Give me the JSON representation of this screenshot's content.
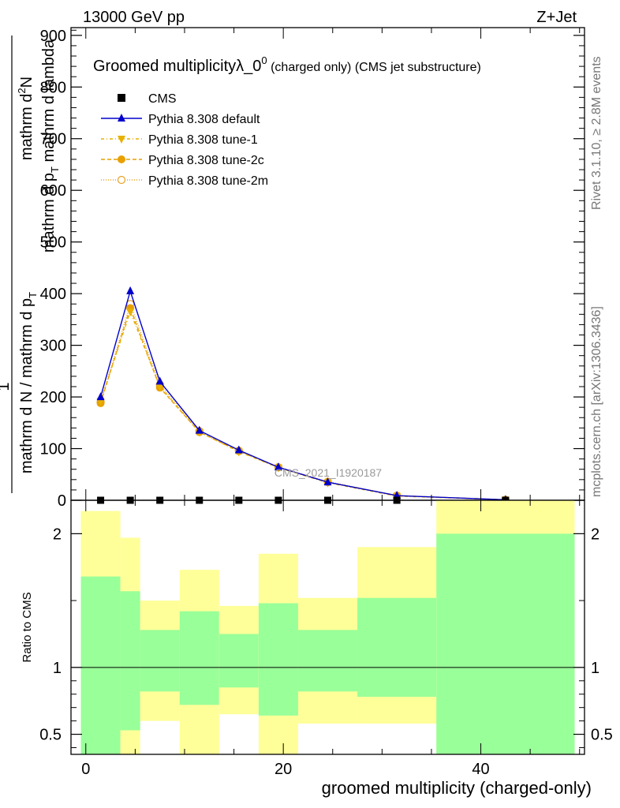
{
  "header": {
    "left": "13000 GeV pp",
    "right": "Z+Jet"
  },
  "side_labels": {
    "rivet": "Rivet 3.1.10, ≥ 2.8M events",
    "mcplots": "mcplots.cern.ch [arXiv:1306.3436]"
  },
  "watermark": "CMS_2021_I1920187",
  "chart_data": [
    {
      "type": "line",
      "title_main": "Groomed multiplicityλ_0",
      "title_sup": "0",
      "title_tail": " (charged only) (CMS jet substructure)",
      "ylabel_parts": {
        "one": "1",
        "denominator": "mathrm d N / mathrm d p",
        "denominator_sub": "T",
        "numerator_a": "mathrm d",
        "numerator_sup": "2",
        "numerator_b": "N",
        "lower_a": "mathrm d p",
        "lower_sub": "T",
        "lower_b": " mathrm d lambda"
      },
      "xlim": [
        -1.5,
        50.5
      ],
      "ylim": [
        0,
        915
      ],
      "yticks": [
        0,
        100,
        200,
        300,
        400,
        500,
        600,
        700,
        800,
        900
      ],
      "x": [
        1.5,
        4.5,
        7.5,
        11.5,
        15.5,
        19.5,
        24.5,
        31.5,
        42.5
      ],
      "cms": {
        "name": "CMS",
        "values": [
          0,
          0,
          0,
          0,
          0,
          0,
          0,
          0,
          0
        ],
        "color": "#000000"
      },
      "series": [
        {
          "name": "Pythia 8.308 default",
          "values": [
            200,
            405,
            230,
            135,
            97,
            64,
            35,
            9,
            1
          ],
          "color": "#0000cc",
          "marker": "triangle-up",
          "dash": ""
        },
        {
          "name": "Pythia 8.308 tune-1",
          "values": [
            192,
            365,
            220,
            132,
            94,
            63,
            34,
            8,
            1
          ],
          "color": "#e8b000",
          "marker": "triangle-down",
          "dash": "4,3,1,3"
        },
        {
          "name": "Pythia 8.308 tune-2c",
          "values": [
            188,
            372,
            218,
            132,
            95,
            64,
            35,
            9,
            1
          ],
          "color": "#e8a000",
          "marker": "circle",
          "dash": "5,3"
        },
        {
          "name": "Pythia 8.308 tune-2m",
          "values": [
            190,
            380,
            224,
            134,
            96,
            64,
            36,
            9,
            1
          ],
          "color": "#e8a020",
          "marker": "open-circle",
          "dash": "1,2"
        }
      ],
      "legend_position": "top-left"
    },
    {
      "type": "area",
      "ylabel": "Ratio to CMS",
      "xlabel": "groomed multiplicity (charged-only)",
      "xlim": [
        -1.5,
        50.5
      ],
      "ylim": [
        0.35,
        2.25
      ],
      "yticks": [
        0.5,
        1,
        2
      ],
      "ytick_labels": [
        "0.5",
        "1",
        "2"
      ],
      "xticks": [
        0,
        20,
        40
      ],
      "xtick_labels": [
        "0",
        "20",
        "40"
      ],
      "bins": [
        {
          "lo": -0.5,
          "hi": 3.5,
          "green": [
            0.35,
            1.68
          ],
          "yellow": [
            0.35,
            2.17
          ]
        },
        {
          "lo": 3.5,
          "hi": 5.5,
          "green": [
            0.53,
            1.57
          ],
          "yellow": [
            0.35,
            1.97
          ]
        },
        {
          "lo": 5.5,
          "hi": 9.5,
          "green": [
            0.82,
            1.28
          ],
          "yellow": [
            0.6,
            1.5
          ]
        },
        {
          "lo": 9.5,
          "hi": 13.5,
          "green": [
            0.72,
            1.42
          ],
          "yellow": [
            0.35,
            1.73
          ]
        },
        {
          "lo": 13.5,
          "hi": 17.5,
          "green": [
            0.85,
            1.25
          ],
          "yellow": [
            0.65,
            1.46
          ]
        },
        {
          "lo": 17.5,
          "hi": 21.5,
          "green": [
            0.64,
            1.48
          ],
          "yellow": [
            0.35,
            1.85
          ]
        },
        {
          "lo": 21.5,
          "hi": 27.5,
          "green": [
            0.82,
            1.28
          ],
          "yellow": [
            0.58,
            1.52
          ]
        },
        {
          "lo": 27.5,
          "hi": 35.5,
          "green": [
            0.78,
            1.52
          ],
          "yellow": [
            0.58,
            1.9
          ]
        },
        {
          "lo": 35.5,
          "hi": 49.5,
          "green": [
            0.35,
            2.0
          ],
          "yellow": [
            0.35,
            2.25
          ]
        }
      ],
      "colors": {
        "green": "#99ff99",
        "yellow": "#ffff99"
      }
    }
  ]
}
